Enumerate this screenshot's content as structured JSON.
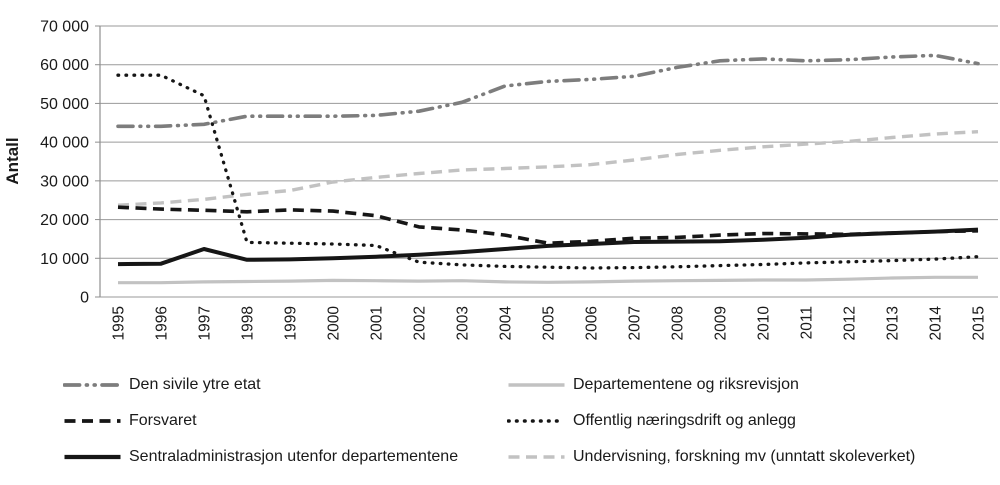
{
  "chart_data": {
    "type": "line",
    "title": "",
    "xlabel": "",
    "ylabel": "Antall",
    "x": [
      1995,
      1996,
      1997,
      1998,
      1999,
      2000,
      2001,
      2002,
      2003,
      2004,
      2005,
      2006,
      2007,
      2008,
      2009,
      2010,
      2011,
      2012,
      2013,
      2014,
      2015
    ],
    "ylim": [
      0,
      70000
    ],
    "ytick_step": 10000,
    "ytick_labels": [
      "0",
      "10 000",
      "20 000",
      "30 000",
      "40 000",
      "50 000",
      "60 000",
      "70 000"
    ],
    "grid": "horizontal-only",
    "legend_position": "bottom, two columns",
    "axis_color": "#8f8f8f",
    "gridline_color": "#9a9a9a",
    "text_color": "#1a1a1a",
    "series": [
      {
        "name": "Den sivile ytre etat",
        "color": "#7d7d7d",
        "line_style": "dash-dot-dot",
        "line_width": 3.6,
        "values": [
          44100,
          44100,
          44600,
          46700,
          46700,
          46700,
          46900,
          48000,
          50300,
          54500,
          55700,
          56200,
          57000,
          59300,
          61000,
          61500,
          61000,
          61300,
          62000,
          62400,
          60300
        ]
      },
      {
        "name": "Departementene og riksrevisjon",
        "color": "#c2c2c2",
        "line_style": "solid",
        "line_width": 3.2,
        "values": [
          3700,
          3700,
          3900,
          4000,
          4100,
          4300,
          4200,
          4100,
          4200,
          3900,
          3800,
          3900,
          4100,
          4200,
          4300,
          4400,
          4400,
          4600,
          4900,
          5100,
          5100
        ]
      },
      {
        "name": "Forsvaret",
        "color": "#161616",
        "line_style": "dash",
        "line_width": 3.6,
        "values": [
          23200,
          22700,
          22400,
          22000,
          22500,
          22200,
          21000,
          18100,
          17300,
          16000,
          13900,
          14400,
          15200,
          15400,
          16000,
          16400,
          16300,
          16200,
          16500,
          16900,
          17100
        ]
      },
      {
        "name": "Offentlig næringsdrift og anlegg",
        "color": "#161616",
        "line_style": "dot",
        "line_width": 3.3,
        "values": [
          57300,
          57300,
          52000,
          14100,
          13900,
          13700,
          13300,
          9000,
          8300,
          7900,
          7700,
          7500,
          7600,
          7800,
          8100,
          8400,
          8800,
          9100,
          9400,
          9800,
          10400
        ]
      },
      {
        "name": "Sentraladministrasjon utenfor departementene",
        "color": "#161616",
        "line_style": "solid",
        "line_width": 4,
        "values": [
          8500,
          8600,
          12400,
          9600,
          9700,
          10000,
          10400,
          10900,
          11600,
          12400,
          13200,
          13700,
          14200,
          14300,
          14400,
          14800,
          15300,
          16100,
          16500,
          16900,
          17400
        ]
      },
      {
        "name": "Undervisning, forskning mv (unntatt skoleverket)",
        "color": "#c2c2c2",
        "line_style": "dash",
        "line_width": 3.4,
        "values": [
          23700,
          24300,
          25200,
          26500,
          27500,
          29700,
          30900,
          31900,
          32800,
          33200,
          33600,
          34200,
          35400,
          36800,
          37900,
          38800,
          39500,
          40200,
          41200,
          42100,
          42700
        ]
      }
    ],
    "legend_columns": [
      [
        0,
        2,
        4
      ],
      [
        1,
        3,
        5
      ]
    ]
  }
}
